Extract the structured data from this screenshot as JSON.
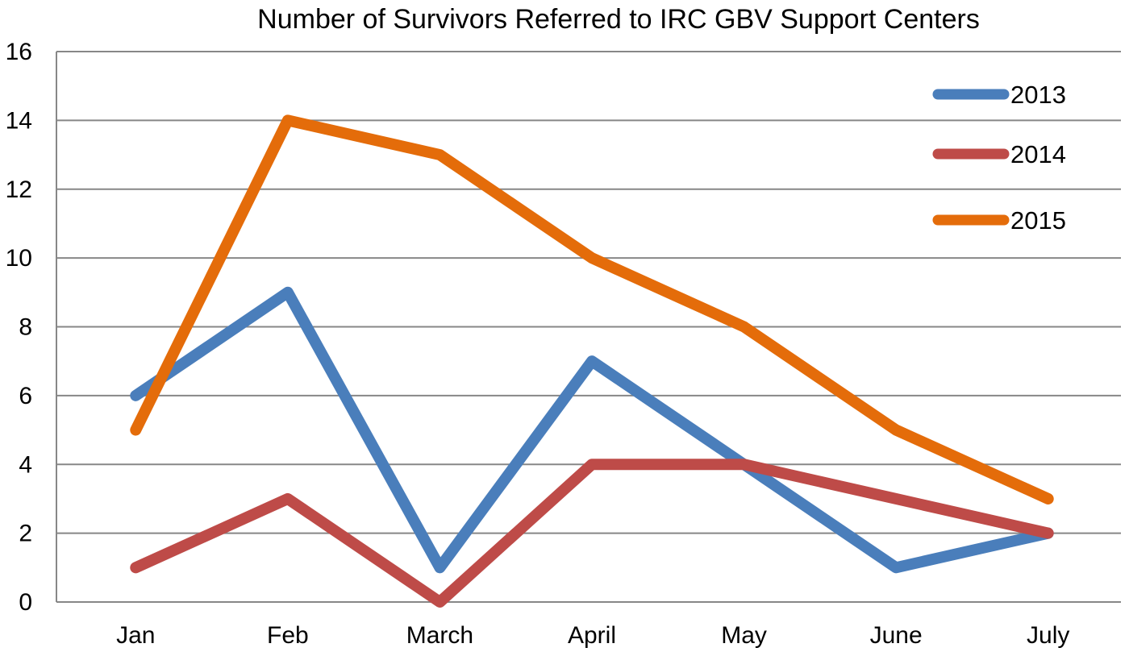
{
  "chart_data": {
    "type": "line",
    "title": "Number of Survivors Referred to IRC GBV Support Centers",
    "xlabel": "",
    "ylabel": "",
    "categories": [
      "Jan",
      "Feb",
      "March",
      "April",
      "May",
      "June",
      "July"
    ],
    "ylim": [
      0,
      16
    ],
    "yticks": [
      0,
      2,
      4,
      6,
      8,
      10,
      12,
      14,
      16
    ],
    "grid": true,
    "legend_position": "top-right",
    "series": [
      {
        "name": "2013",
        "color": "#4a7ebb",
        "values": [
          6,
          9,
          1,
          7,
          4,
          1,
          2
        ]
      },
      {
        "name": "2014",
        "color": "#be4b48",
        "values": [
          1,
          3,
          0,
          4,
          4,
          3,
          2
        ]
      },
      {
        "name": "2015",
        "color": "#e46c0a",
        "values": [
          5,
          14,
          13,
          10,
          8,
          5,
          3
        ]
      }
    ]
  }
}
